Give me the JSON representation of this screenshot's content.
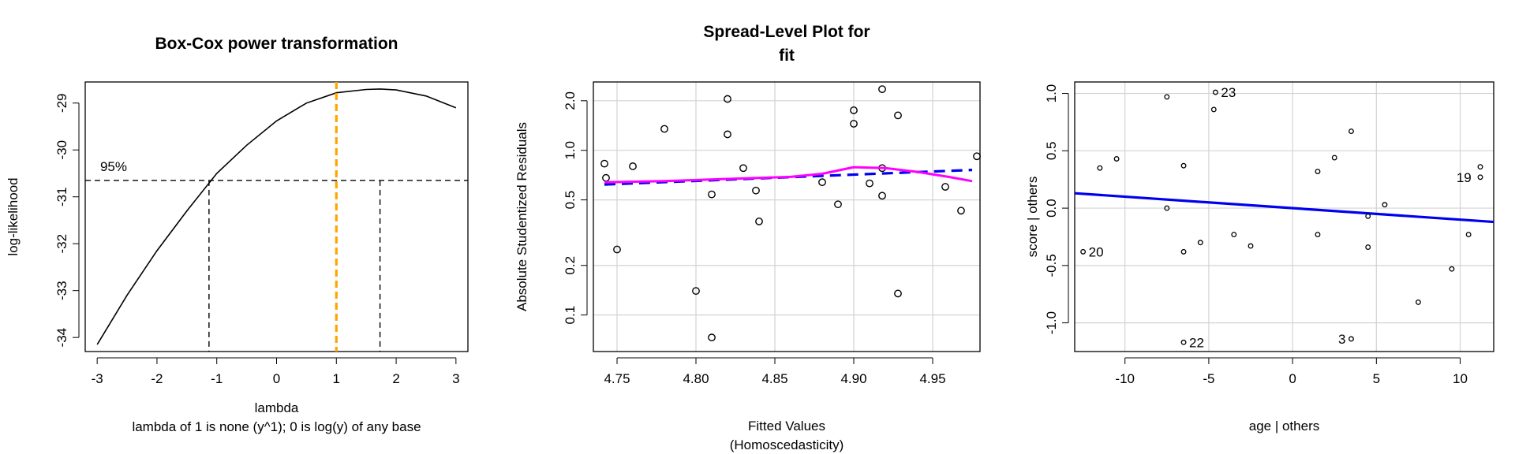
{
  "chart_data": [
    {
      "type": "line",
      "title": "Box-Cox power transformation",
      "xlabel": "lambda",
      "subtitle": "lambda of 1 is none (y^1); 0 is log(y) of any base",
      "ylabel": "log-likelihood",
      "xlim": [
        -3.2,
        3.2
      ],
      "ylim": [
        -34.3,
        -28.55
      ],
      "xticks": [
        -3,
        -2,
        -1,
        0,
        1,
        2,
        3
      ],
      "yticks": [
        -34,
        -33,
        -32,
        -31,
        -30,
        -29
      ],
      "curve": {
        "x": [
          -3,
          -2.5,
          -2,
          -1.5,
          -1,
          -0.5,
          0,
          0.5,
          1,
          1.5,
          1.73,
          2,
          2.5,
          3
        ],
        "y": [
          -34.15,
          -33.1,
          -32.15,
          -31.3,
          -30.5,
          -29.9,
          -29.38,
          -29.0,
          -28.78,
          -28.71,
          -28.7,
          -28.72,
          -28.85,
          -29.1
        ]
      },
      "ci_label": "95%",
      "ci_level": -30.65,
      "ci_lower": -1.13,
      "ci_upper": 1.73,
      "reference_lambda": 1,
      "colors": {
        "curve": "#000000",
        "reference": "#FFA500"
      }
    },
    {
      "type": "scatter",
      "title": "Spread-Level Plot for",
      "title_line2": "fit",
      "xlabel": "Fitted Values",
      "xlabel_line2": "(Homoscedasticity)",
      "ylabel": "Absolute Studentized Residuals",
      "xlim": [
        4.735,
        4.98
      ],
      "ylim": [
        0.06,
        2.6
      ],
      "y_scale": "log",
      "xticks": [
        4.75,
        4.8,
        4.85,
        4.9,
        4.95
      ],
      "xtick_labels": [
        "4.75",
        "4.80",
        "4.85",
        "4.90",
        "4.95"
      ],
      "yticks": [
        0.1,
        0.2,
        0.5,
        1.0,
        2.0
      ],
      "ytick_labels": [
        "0.1",
        "0.2",
        "0.5",
        "1.0",
        "2.0"
      ],
      "grid": true,
      "points": [
        [
          4.742,
          0.83
        ],
        [
          4.743,
          0.68
        ],
        [
          4.75,
          0.25
        ],
        [
          4.76,
          0.8
        ],
        [
          4.78,
          1.35
        ],
        [
          4.8,
          0.14
        ],
        [
          4.81,
          0.54
        ],
        [
          4.81,
          0.073
        ],
        [
          4.82,
          2.05
        ],
        [
          4.82,
          1.25
        ],
        [
          4.83,
          0.78
        ],
        [
          4.838,
          0.57
        ],
        [
          4.84,
          0.37
        ],
        [
          4.88,
          0.64
        ],
        [
          4.89,
          0.47
        ],
        [
          4.9,
          1.75
        ],
        [
          4.9,
          1.45
        ],
        [
          4.91,
          0.63
        ],
        [
          4.918,
          2.35
        ],
        [
          4.918,
          0.78
        ],
        [
          4.918,
          0.53
        ],
        [
          4.928,
          1.63
        ],
        [
          4.928,
          0.135
        ],
        [
          4.958,
          0.6
        ],
        [
          4.968,
          0.43
        ],
        [
          4.978,
          0.92
        ]
      ],
      "fit_line": {
        "x": [
          4.742,
          4.975
        ],
        "y": [
          0.62,
          0.76
        ]
      },
      "smooth": {
        "x": [
          4.742,
          4.78,
          4.82,
          4.86,
          4.88,
          4.9,
          4.92,
          4.94,
          4.96,
          4.975
        ],
        "y": [
          0.64,
          0.65,
          0.67,
          0.69,
          0.72,
          0.79,
          0.78,
          0.74,
          0.69,
          0.65
        ]
      },
      "colors": {
        "fit": "#0000EE",
        "smooth": "#FF00FF"
      }
    },
    {
      "type": "scatter",
      "xlabel": "age | others",
      "ylabel": "score  | others",
      "xlim": [
        -13,
        12
      ],
      "ylim": [
        -1.25,
        1.1
      ],
      "xticks": [
        -10,
        -5,
        0,
        5,
        10
      ],
      "yticks": [
        -1.0,
        -0.5,
        0.0,
        0.5,
        1.0
      ],
      "ytick_labels": [
        "-1.0",
        "-0.5",
        "0.0",
        "0.5",
        "1.0"
      ],
      "grid": true,
      "points": [
        [
          -7.5,
          0.97
        ],
        [
          -4.6,
          1.01
        ],
        [
          -4.7,
          0.86
        ],
        [
          3.5,
          0.67
        ],
        [
          -11.5,
          0.35
        ],
        [
          -10.5,
          0.43
        ],
        [
          -6.5,
          0.37
        ],
        [
          1.5,
          0.32
        ],
        [
          2.5,
          0.44
        ],
        [
          11.2,
          0.36
        ],
        [
          11.2,
          0.27
        ],
        [
          -7.5,
          0.0
        ],
        [
          5.5,
          0.03
        ],
        [
          4.5,
          -0.07
        ],
        [
          -12.5,
          -0.38
        ],
        [
          -6.5,
          -0.38
        ],
        [
          -5.5,
          -0.3
        ],
        [
          -3.5,
          -0.23
        ],
        [
          -2.5,
          -0.33
        ],
        [
          1.5,
          -0.23
        ],
        [
          4.5,
          -0.34
        ],
        [
          10.5,
          -0.23
        ],
        [
          9.5,
          -0.53
        ],
        [
          7.5,
          -0.82
        ],
        [
          -6.5,
          -1.17
        ],
        [
          3.5,
          -1.14
        ]
      ],
      "labels": [
        {
          "text": "23",
          "x": -4.6,
          "y": 1.01
        },
        {
          "text": "20",
          "x": -12.5,
          "y": -0.38
        },
        {
          "text": "22",
          "x": -6.5,
          "y": -1.17
        },
        {
          "text": "3",
          "x": 3.5,
          "y": -1.14,
          "side": "left"
        },
        {
          "text": "19",
          "x": 11.0,
          "y": 0.27,
          "side": "left"
        }
      ],
      "fit_line": {
        "x": [
          -13,
          12
        ],
        "y": [
          0.13,
          -0.12
        ]
      },
      "colors": {
        "fit": "#0000EE"
      }
    }
  ]
}
